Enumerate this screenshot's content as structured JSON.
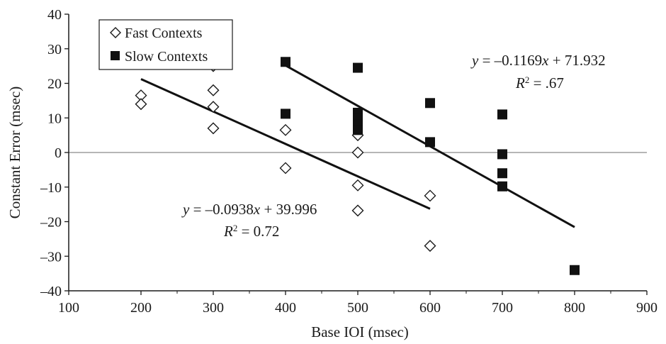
{
  "chart_data": {
    "type": "scatter",
    "xlabel": "Base IOI (msec)",
    "ylabel": "Constant Error (msec)",
    "xlim": [
      100,
      900
    ],
    "ylim": [
      -40,
      40
    ],
    "xticks": [
      100,
      200,
      300,
      400,
      500,
      600,
      700,
      800,
      900
    ],
    "yticks": [
      -40,
      -30,
      -20,
      -10,
      0,
      10,
      20,
      30,
      40
    ],
    "grid": false,
    "legend_position": "top-left",
    "series": [
      {
        "name": "Fast Contexts",
        "marker": "open-diamond",
        "color": "#1a1a1a",
        "points": [
          [
            200,
            16.5
          ],
          [
            200,
            14
          ],
          [
            300,
            25
          ],
          [
            300,
            18
          ],
          [
            300,
            13.2
          ],
          [
            300,
            7
          ],
          [
            400,
            6.5
          ],
          [
            400,
            -4.5
          ],
          [
            500,
            5
          ],
          [
            500,
            0
          ],
          [
            500,
            -9.5
          ],
          [
            500,
            -16.8
          ],
          [
            600,
            -12.5
          ],
          [
            600,
            -27
          ]
        ],
        "trendline": {
          "slope": -0.0938,
          "intercept": 39.996,
          "x_range": [
            200,
            600
          ],
          "equation_parts": [
            "y",
            " = –0.0938",
            "x",
            " + 39.996"
          ],
          "r2_parts": [
            "R",
            "2",
            " = 0.72"
          ]
        }
      },
      {
        "name": "Slow Contexts",
        "marker": "filled-square",
        "color": "#111111",
        "points": [
          [
            400,
            26.2
          ],
          [
            400,
            11.2
          ],
          [
            500,
            24.5
          ],
          [
            500,
            11.5
          ],
          [
            500,
            9.8
          ],
          [
            500,
            8.2
          ],
          [
            500,
            6.5
          ],
          [
            600,
            14.3
          ],
          [
            600,
            3
          ],
          [
            700,
            11
          ],
          [
            700,
            -0.5
          ],
          [
            700,
            -6
          ],
          [
            700,
            -9.8
          ],
          [
            800,
            -34
          ]
        ],
        "trendline": {
          "slope": -0.1169,
          "intercept": 71.932,
          "x_range": [
            400,
            800
          ],
          "equation_parts": [
            "y",
            " = –0.1169",
            "x",
            " + 71.932"
          ],
          "r2_parts": [
            "R",
            "2",
            " = .67"
          ]
        }
      }
    ]
  }
}
